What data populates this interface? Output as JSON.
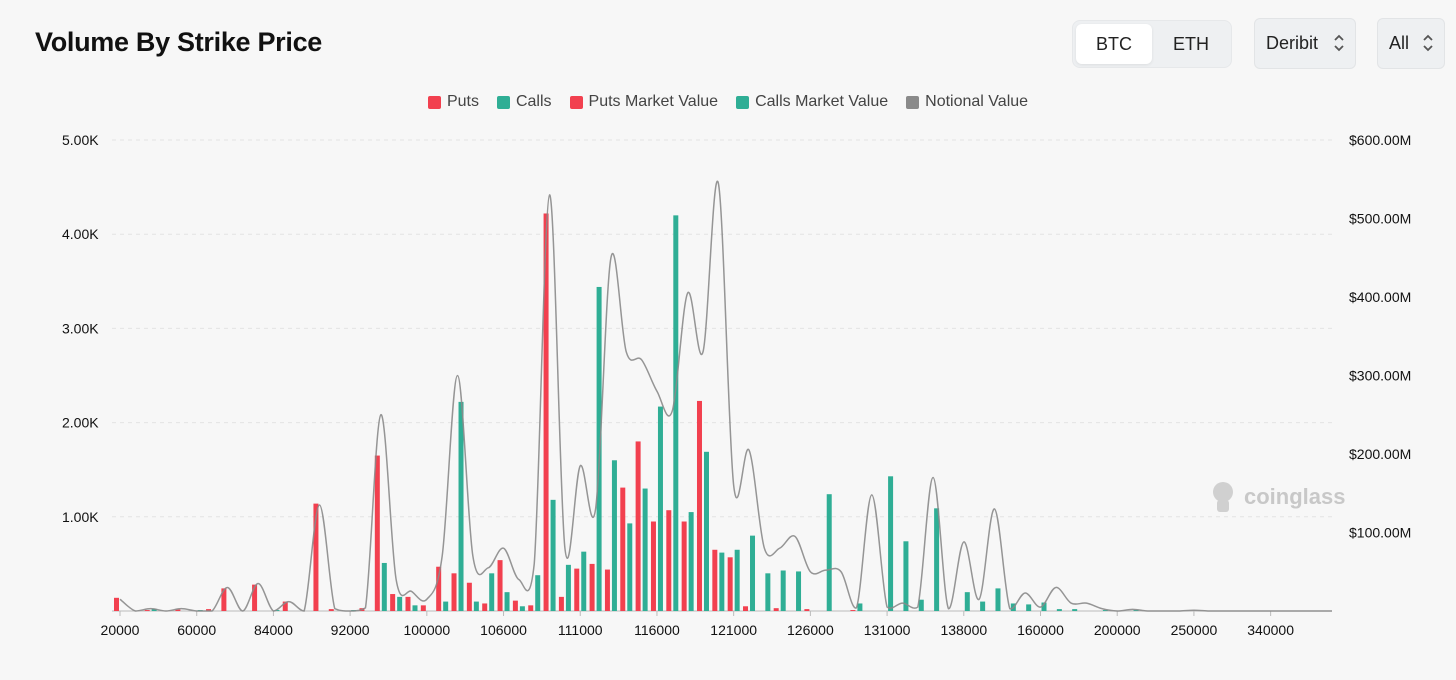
{
  "header": {
    "title": "Volume By Strike Price"
  },
  "asset_tabs": [
    {
      "label": "BTC",
      "active": true
    },
    {
      "label": "ETH",
      "active": false
    }
  ],
  "exchange_select": {
    "value": "Deribit"
  },
  "range_select": {
    "value": "All"
  },
  "watermark": "coinglass",
  "colors": {
    "puts": "#f2404f",
    "calls": "#2fae95",
    "notional": "#8a8a8a"
  },
  "chart_data": {
    "type": "bar",
    "legend": [
      {
        "label": "Puts",
        "color": "#f2404f"
      },
      {
        "label": "Calls",
        "color": "#2fae95"
      },
      {
        "label": "Puts Market Value",
        "color": "#f2404f"
      },
      {
        "label": "Calls Market Value",
        "color": "#2fae95"
      },
      {
        "label": "Notional Value",
        "color": "#8a8a8a"
      }
    ],
    "y_left": {
      "ticks": [
        "5.00K",
        "4.00K",
        "3.00K",
        "2.00K",
        "1.00K"
      ],
      "range": [
        0,
        5000
      ]
    },
    "y_right": {
      "ticks": [
        "$600.00M",
        "$500.00M",
        "$400.00M",
        "$300.00M",
        "$200.00M",
        "$100.00M"
      ],
      "range": [
        0,
        600000000
      ]
    },
    "x_tick_labels": [
      "20000",
      "60000",
      "84000",
      "92000",
      "100000",
      "106000",
      "111000",
      "116000",
      "121000",
      "126000",
      "131000",
      "138000",
      "160000",
      "200000",
      "250000",
      "340000"
    ],
    "x_tick_index": [
      0,
      5,
      10,
      15,
      20,
      25,
      30,
      35,
      40,
      45,
      50,
      55,
      60,
      65,
      70,
      75
    ],
    "categories_count": 80,
    "puts": [
      [
        0,
        140
      ],
      [
        2,
        10
      ],
      [
        4,
        15
      ],
      [
        6,
        20
      ],
      [
        7,
        240
      ],
      [
        9,
        280
      ],
      [
        11,
        100
      ],
      [
        13,
        1140
      ],
      [
        14,
        20
      ],
      [
        16,
        30
      ],
      [
        17,
        1650
      ],
      [
        18,
        180
      ],
      [
        19,
        150
      ],
      [
        20,
        60
      ],
      [
        21,
        470
      ],
      [
        22,
        400
      ],
      [
        23,
        300
      ],
      [
        24,
        80
      ],
      [
        25,
        540
      ],
      [
        26,
        110
      ],
      [
        27,
        60
      ],
      [
        28,
        4220
      ],
      [
        29,
        150
      ],
      [
        30,
        450
      ],
      [
        31,
        500
      ],
      [
        32,
        440
      ],
      [
        33,
        1310
      ],
      [
        34,
        1800
      ],
      [
        35,
        950
      ],
      [
        36,
        1070
      ],
      [
        37,
        950
      ],
      [
        38,
        2230
      ],
      [
        39,
        650
      ],
      [
        40,
        570
      ],
      [
        41,
        50
      ],
      [
        43,
        30
      ],
      [
        45,
        20
      ],
      [
        48,
        10
      ]
    ],
    "calls": [
      [
        2,
        20
      ],
      [
        5,
        10
      ],
      [
        10,
        10
      ],
      [
        15,
        10
      ],
      [
        17,
        510
      ],
      [
        18,
        150
      ],
      [
        19,
        60
      ],
      [
        21,
        100
      ],
      [
        22,
        2220
      ],
      [
        23,
        100
      ],
      [
        24,
        400
      ],
      [
        25,
        200
      ],
      [
        26,
        50
      ],
      [
        27,
        380
      ],
      [
        28,
        1180
      ],
      [
        29,
        490
      ],
      [
        30,
        630
      ],
      [
        31,
        3440
      ],
      [
        32,
        1600
      ],
      [
        33,
        930
      ],
      [
        34,
        1300
      ],
      [
        35,
        2170
      ],
      [
        36,
        4200
      ],
      [
        37,
        1050
      ],
      [
        38,
        1690
      ],
      [
        39,
        620
      ],
      [
        40,
        650
      ],
      [
        41,
        800
      ],
      [
        42,
        400
      ],
      [
        43,
        430
      ],
      [
        44,
        420
      ],
      [
        46,
        1240
      ],
      [
        48,
        80
      ],
      [
        50,
        1430
      ],
      [
        51,
        740
      ],
      [
        52,
        120
      ],
      [
        53,
        1090
      ],
      [
        55,
        200
      ],
      [
        56,
        100
      ],
      [
        57,
        240
      ],
      [
        58,
        80
      ],
      [
        59,
        70
      ],
      [
        60,
        90
      ],
      [
        61,
        20
      ],
      [
        62,
        20
      ],
      [
        64,
        10
      ],
      [
        66,
        10
      ]
    ],
    "notional_value": [
      [
        0,
        15000000
      ],
      [
        2,
        3000000
      ],
      [
        4,
        3000000
      ],
      [
        7,
        30000000
      ],
      [
        9,
        35000000
      ],
      [
        11,
        12000000
      ],
      [
        13,
        135000000
      ],
      [
        14,
        3000000
      ],
      [
        16,
        4000000
      ],
      [
        17,
        250000000
      ],
      [
        18,
        40000000
      ],
      [
        19,
        25000000
      ],
      [
        20,
        15000000
      ],
      [
        21,
        70000000
      ],
      [
        22,
        300000000
      ],
      [
        23,
        70000000
      ],
      [
        24,
        55000000
      ],
      [
        25,
        80000000
      ],
      [
        26,
        40000000
      ],
      [
        27,
        60000000
      ],
      [
        28,
        530000000
      ],
      [
        29,
        80000000
      ],
      [
        30,
        185000000
      ],
      [
        31,
        130000000
      ],
      [
        32,
        450000000
      ],
      [
        33,
        330000000
      ],
      [
        34,
        320000000
      ],
      [
        35,
        280000000
      ],
      [
        36,
        255000000
      ],
      [
        37,
        405000000
      ],
      [
        38,
        330000000
      ],
      [
        39,
        545000000
      ],
      [
        40,
        160000000
      ],
      [
        41,
        205000000
      ],
      [
        42,
        80000000
      ],
      [
        43,
        80000000
      ],
      [
        44,
        95000000
      ],
      [
        45,
        50000000
      ],
      [
        46,
        52000000
      ],
      [
        47,
        50000000
      ],
      [
        48,
        4000000
      ],
      [
        49,
        148000000
      ],
      [
        50,
        5000000
      ],
      [
        51,
        10000000
      ],
      [
        52,
        5000000
      ],
      [
        53,
        170000000
      ],
      [
        54,
        3000000
      ],
      [
        55,
        88000000
      ],
      [
        56,
        15000000
      ],
      [
        57,
        130000000
      ],
      [
        58,
        3000000
      ],
      [
        59,
        23000000
      ],
      [
        60,
        5000000
      ],
      [
        61,
        30000000
      ],
      [
        62,
        10000000
      ],
      [
        63,
        10000000
      ],
      [
        64,
        3000000
      ],
      [
        66,
        2000000
      ],
      [
        70,
        1000000
      ]
    ]
  }
}
